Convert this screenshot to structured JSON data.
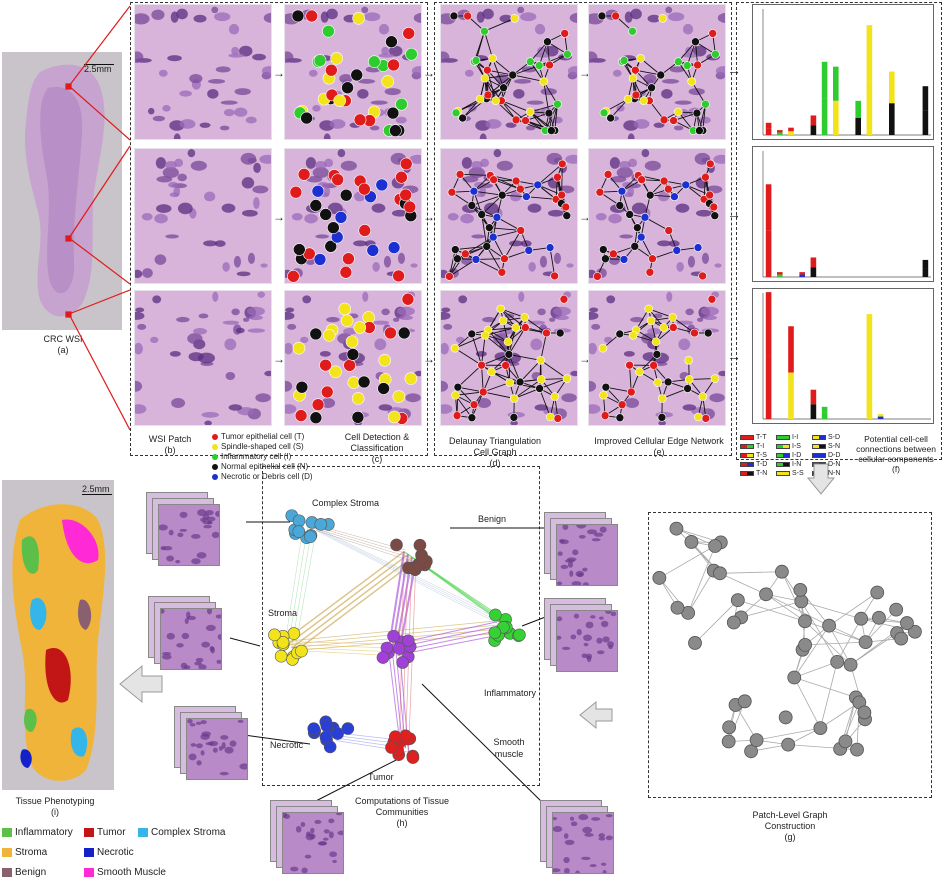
{
  "wsi": {
    "scale": "2.5mm",
    "caption": "CRC WSI",
    "letter": "(a)"
  },
  "patch_caption": {
    "title": "WSI Patch",
    "letter": "(b)"
  },
  "cell_legend": [
    {
      "label": "Tumor epithelial cell (T)",
      "color": "#e01b1b"
    },
    {
      "label": "Spindle-shaped cell (S)",
      "color": "#f2e31a"
    },
    {
      "label": "Inflammatory cell (I)",
      "color": "#2ecc2e"
    },
    {
      "label": "Normal epithelial cell (N)",
      "color": "#111111"
    },
    {
      "label": "Necrotic or Debris cell (D)",
      "color": "#1c2fd1"
    }
  ],
  "detection_caption": {
    "title": "Cell Detection & Classification",
    "letter": "(c)"
  },
  "delaunay_caption": {
    "title": "Delaunay Triangulation Cell Graph",
    "letter": "(d)"
  },
  "edge_caption": {
    "title": "Improved Cellular Edge Network",
    "letter": "(e)"
  },
  "connections_caption": {
    "title": "Potential cell-cell connections between cellular components",
    "letter": "(f)"
  },
  "pair_legend": [
    {
      "label": "T-T",
      "colors": [
        "#e01b1b",
        "#e01b1b"
      ]
    },
    {
      "label": "T-I",
      "colors": [
        "#e01b1b",
        "#2ecc2e"
      ]
    },
    {
      "label": "T-S",
      "colors": [
        "#e01b1b",
        "#f2e31a"
      ]
    },
    {
      "label": "T-D",
      "colors": [
        "#e01b1b",
        "#1c2fd1"
      ]
    },
    {
      "label": "T-N",
      "colors": [
        "#e01b1b",
        "#111111"
      ]
    },
    {
      "label": "I-I",
      "colors": [
        "#2ecc2e",
        "#2ecc2e"
      ]
    },
    {
      "label": "I-S",
      "colors": [
        "#2ecc2e",
        "#f2e31a"
      ]
    },
    {
      "label": "I-D",
      "colors": [
        "#2ecc2e",
        "#1c2fd1"
      ]
    },
    {
      "label": "I-N",
      "colors": [
        "#2ecc2e",
        "#111111"
      ]
    },
    {
      "label": "S-S",
      "colors": [
        "#f2e31a",
        "#f2e31a"
      ]
    },
    {
      "label": "S-D",
      "colors": [
        "#f2e31a",
        "#1c2fd1"
      ]
    },
    {
      "label": "S-N",
      "colors": [
        "#f2e31a",
        "#111111"
      ]
    },
    {
      "label": "D-D",
      "colors": [
        "#1c2fd1",
        "#1c2fd1"
      ]
    },
    {
      "label": "D-N",
      "colors": [
        "#1c2fd1",
        "#111111"
      ]
    },
    {
      "label": "N-N",
      "colors": [
        "#111111",
        "#111111"
      ]
    }
  ],
  "chart_data": [
    {
      "type": "bar",
      "pairs": [
        "T-T",
        "T-I",
        "T-S",
        "T-D",
        "T-N",
        "I-I",
        "I-S",
        "I-D",
        "I-N",
        "S-S",
        "S-D",
        "S-N",
        "D-D",
        "D-N",
        "N-N"
      ],
      "values": [
        0.05,
        0.02,
        0.03,
        0.0,
        0.08,
        0.3,
        0.28,
        0.0,
        0.14,
        0.45,
        0.0,
        0.26,
        0.0,
        0.0,
        0.2
      ]
    },
    {
      "type": "bar",
      "pairs": [
        "T-T",
        "T-I",
        "T-S",
        "T-D",
        "T-N",
        "I-I",
        "I-S",
        "I-D",
        "I-N",
        "S-S",
        "S-D",
        "S-N",
        "D-D",
        "D-N",
        "N-N"
      ],
      "values": [
        0.38,
        0.02,
        0.0,
        0.02,
        0.08,
        0.0,
        0.0,
        0.0,
        0.0,
        0.0,
        0.0,
        0.0,
        0.0,
        0.0,
        0.07
      ]
    },
    {
      "type": "bar",
      "pairs": [
        "T-T",
        "T-I",
        "T-S",
        "T-D",
        "T-N",
        "I-I",
        "I-S",
        "I-D",
        "I-N",
        "S-S",
        "S-D",
        "S-N",
        "D-D",
        "D-N",
        "N-N"
      ],
      "values": [
        0.52,
        0.0,
        0.38,
        0.0,
        0.12,
        0.05,
        0.0,
        0.0,
        0.0,
        0.43,
        0.02,
        0.0,
        0.0,
        0.0,
        0.0
      ]
    }
  ],
  "communities": [
    {
      "name": "Complex Stroma",
      "color": "#4aa8d8"
    },
    {
      "name": "Benign",
      "color": "#7b4a44"
    },
    {
      "name": "Stroma",
      "color": "#f2e31a"
    },
    {
      "name": "Inflammatory",
      "color": "#35d135"
    },
    {
      "name": "Necrotic",
      "color": "#2a3fd6"
    },
    {
      "name": "Tumor",
      "color": "#e02020"
    },
    {
      "name": "Smooth muscle",
      "color": "#a040d8"
    }
  ],
  "community_caption": {
    "title": "Computations of Tissue Communities",
    "letter": "(h)"
  },
  "graph_caption": {
    "title": "Patch-Level Graph Construction",
    "letter": "(g)"
  },
  "phenotype": {
    "scale": "2.5mm",
    "caption": "Tissue Phenotyping",
    "letter": "(i)"
  },
  "tissue_legend": [
    {
      "label": "Inflammatory",
      "color": "#5cbf4a"
    },
    {
      "label": "Tumor",
      "color": "#c21616"
    },
    {
      "label": "Complex Stroma",
      "color": "#35b6e8"
    },
    {
      "label": "Stroma",
      "color": "#f0b43a"
    },
    {
      "label": "Necrotic",
      "color": "#1222c8"
    },
    {
      "label": "Benign",
      "color": "#8a6070"
    },
    {
      "label": "Smooth Muscle",
      "color": "#ff2ad6"
    }
  ]
}
